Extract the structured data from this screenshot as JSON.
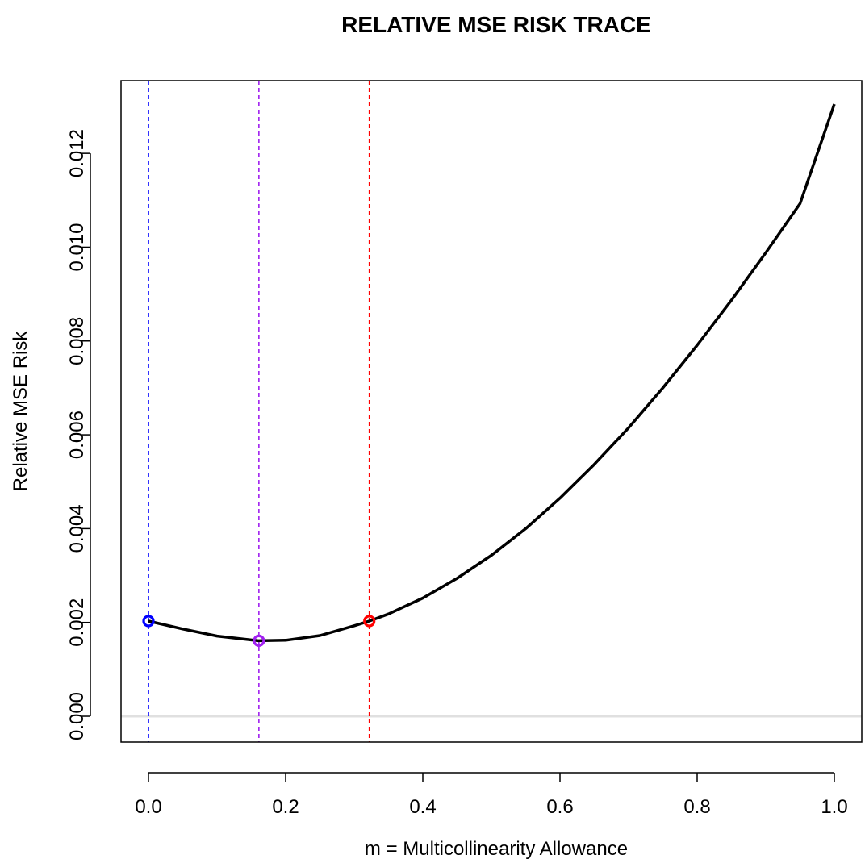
{
  "chart_data": {
    "type": "line",
    "title": "RELATIVE MSE RISK TRACE",
    "xlabel": "m = Multicollinearity Allowance",
    "ylabel": "Relative MSE Risk",
    "xlim": [
      -0.04,
      1.04
    ],
    "ylim": [
      -0.00055,
      0.01355
    ],
    "x_ticks": [
      0.0,
      0.2,
      0.4,
      0.6,
      0.8,
      1.0
    ],
    "x_tick_labels": [
      "0.0",
      "0.2",
      "0.4",
      "0.6",
      "0.8",
      "1.0"
    ],
    "y_ticks": [
      0.0,
      0.002,
      0.004,
      0.006,
      0.008,
      0.01,
      0.012
    ],
    "y_tick_labels": [
      "0.000",
      "0.002",
      "0.004",
      "0.006",
      "0.008",
      "0.010",
      "0.012"
    ],
    "grid": false,
    "series": [
      {
        "color": "#000000",
        "x": [
          0.0,
          0.05,
          0.1,
          0.16,
          0.2,
          0.25,
          0.3,
          0.322,
          0.35,
          0.4,
          0.45,
          0.5,
          0.55,
          0.6,
          0.65,
          0.7,
          0.75,
          0.8,
          0.85,
          0.9,
          0.95,
          1.0
        ],
        "y": [
          0.00203,
          0.00186,
          0.00171,
          0.00161,
          0.00162,
          0.00172,
          0.00193,
          0.00203,
          0.00218,
          0.00252,
          0.00294,
          0.00343,
          0.004,
          0.00465,
          0.00537,
          0.00615,
          0.007,
          0.00791,
          0.00887,
          0.00988,
          0.01093,
          0.01305
        ]
      }
    ],
    "reference_hline": {
      "y": 0.0,
      "color": "#e0e0e0"
    },
    "reference_vlines": [
      {
        "x": 0.0,
        "color": "#0000ff"
      },
      {
        "x": 0.161,
        "color": "#a020f0"
      },
      {
        "x": 0.322,
        "color": "#ff0000"
      }
    ],
    "points": [
      {
        "x": 0.0,
        "y": 0.00203,
        "color": "#0000ff"
      },
      {
        "x": 0.161,
        "y": 0.00161,
        "color": "#a020f0"
      },
      {
        "x": 0.322,
        "y": 0.00203,
        "color": "#ff0000"
      }
    ]
  }
}
